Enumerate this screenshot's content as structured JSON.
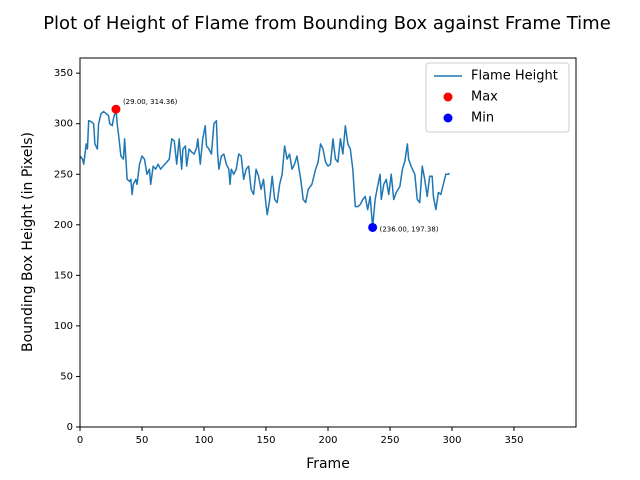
{
  "chart_data": {
    "type": "line",
    "title": "Plot of Height of Flame from Bounding Box against Frame Time",
    "x_label": "Frame",
    "y_label": "Bounding Box Height (in Pixels)",
    "xlim": [
      0,
      400
    ],
    "ylim": [
      0,
      365
    ],
    "xticks": [
      0,
      50,
      100,
      150,
      200,
      250,
      300,
      350
    ],
    "yticks": [
      0,
      50,
      100,
      150,
      200,
      250,
      300,
      350
    ],
    "legend": "upper right",
    "series": [
      {
        "name": "Flame Height",
        "type": "line",
        "color": "#1f77b4",
        "x": [
          0,
          2,
          3,
          5,
          6,
          7,
          9,
          11,
          12,
          14,
          15,
          17,
          19,
          21,
          23,
          24,
          26,
          27,
          29,
          30,
          31,
          33,
          35,
          36,
          38,
          40,
          41,
          42,
          43,
          45,
          46,
          48,
          50,
          52,
          54,
          56,
          57,
          59,
          61,
          63,
          65,
          67,
          70,
          72,
          74,
          76,
          78,
          80,
          82,
          83,
          85,
          86,
          88,
          90,
          92,
          94,
          95,
          97,
          99,
          101,
          102,
          104,
          106,
          108,
          110,
          111,
          112,
          114,
          116,
          118,
          120,
          121,
          122,
          124,
          126,
          128,
          130,
          132,
          134,
          136,
          138,
          140,
          142,
          144,
          146,
          148,
          150,
          151,
          153,
          155,
          157,
          159,
          161,
          163,
          165,
          167,
          169,
          171,
          173,
          175,
          178,
          180,
          182,
          184,
          187,
          190,
          192,
          194,
          196,
          198,
          200,
          202,
          204,
          206,
          208,
          210,
          212,
          214,
          216,
          218,
          220,
          222,
          224,
          226,
          228,
          230,
          232,
          234,
          236,
          238,
          240,
          242,
          243,
          245,
          247,
          249,
          251,
          253,
          255,
          258,
          260,
          262,
          264,
          265,
          267,
          270,
          272,
          274,
          276,
          278,
          280,
          282,
          284,
          285,
          287,
          289,
          291,
          293,
          295,
          297,
          298
        ],
        "values": [
          268,
          265,
          260,
          280,
          275,
          303,
          302,
          300,
          280,
          275,
          300,
          310,
          312,
          310,
          308,
          300,
          298,
          305,
          314.36,
          300,
          290,
          268,
          265,
          285,
          245,
          243,
          245,
          230,
          240,
          245,
          240,
          260,
          268,
          265,
          250,
          255,
          240,
          258,
          255,
          260,
          255,
          258,
          262,
          265,
          285,
          283,
          260,
          285,
          255,
          275,
          278,
          258,
          275,
          272,
          270,
          276,
          285,
          260,
          285,
          298,
          278,
          275,
          270,
          300,
          303,
          270,
          255,
          268,
          270,
          260,
          255,
          240,
          255,
          250,
          255,
          270,
          268,
          245,
          255,
          258,
          235,
          230,
          255,
          248,
          235,
          245,
          220,
          210,
          225,
          248,
          225,
          222,
          240,
          250,
          278,
          265,
          270,
          255,
          260,
          268,
          245,
          225,
          222,
          235,
          240,
          255,
          262,
          280,
          275,
          262,
          258,
          260,
          285,
          265,
          262,
          285,
          270,
          298,
          280,
          275,
          255,
          218,
          218,
          220,
          225,
          228,
          215,
          228,
          197.38,
          225,
          238,
          250,
          225,
          240,
          245,
          230,
          250,
          225,
          232,
          238,
          255,
          263,
          280,
          265,
          258,
          250,
          225,
          222,
          258,
          245,
          228,
          248,
          248,
          228,
          215,
          232,
          230,
          240,
          250,
          250,
          251
        ]
      },
      {
        "name": "Max",
        "type": "scatter",
        "color": "red",
        "x": [
          29
        ],
        "values": [
          314.36
        ],
        "value_labels": [
          "(29.00, 314.36)"
        ]
      },
      {
        "name": "Min",
        "type": "scatter",
        "color": "blue",
        "x": [
          236
        ],
        "values": [
          197.38
        ],
        "value_labels": [
          "(236.00, 197.38)"
        ]
      }
    ]
  }
}
